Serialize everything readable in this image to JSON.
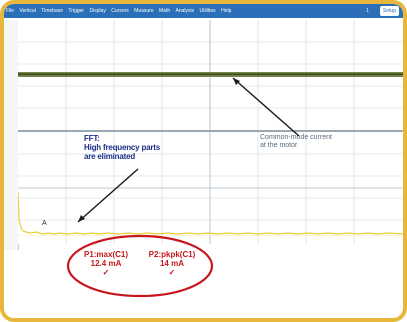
{
  "menu": {
    "items": [
      "File",
      "Vertical",
      "Timebase",
      "Trigger",
      "Display",
      "Cursors",
      "Measure",
      "Math",
      "Analysis",
      "Utilities",
      "Help"
    ],
    "window_number": "1",
    "right_button": "Setup"
  },
  "annotations": {
    "fft_title": "FFT:",
    "fft_line1": "High frequency parts",
    "fft_line2": "are eliminated",
    "common_mode_line1": "Common-mode current",
    "common_mode_line2": "at the motor"
  },
  "trace_marker": "A",
  "measurements": {
    "p1_label": "P1:max(C1)",
    "p1_value": "12.4 mA",
    "p2_label": "P2:pkpk(C1)",
    "p2_value": "14 mA",
    "check": "✓"
  },
  "colors": {
    "frame": "#e7b63a",
    "menubar": "#2a6fb8",
    "trace_top": "#5d6e2a",
    "trace_fft": "#e6cf3a",
    "annotation_red": "#c8161d",
    "annotation_blue": "#1b2f8a"
  }
}
